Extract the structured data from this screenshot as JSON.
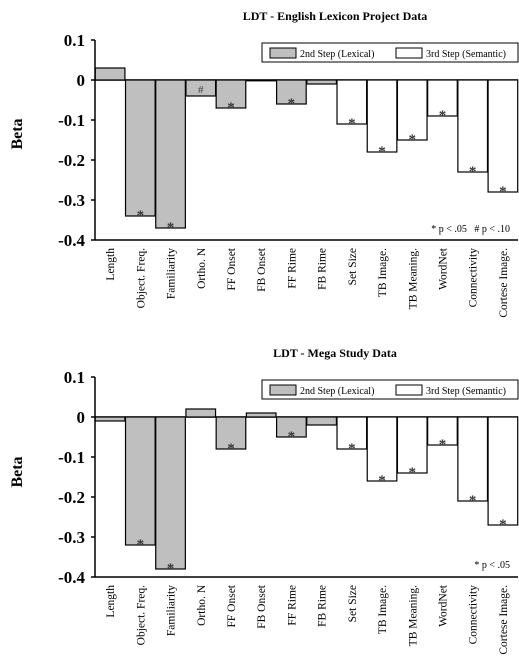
{
  "chart_data": [
    {
      "type": "bar",
      "title": "LDT - English Lexicon Project Data",
      "ylabel": "Beta",
      "ylim": [
        -0.4,
        0.1
      ],
      "yticks": [
        "0.1",
        "0",
        "-0.1",
        "-0.2",
        "-0.3",
        "-0.4"
      ],
      "categories": [
        "Length",
        "Object. Freq.",
        "Familiarity",
        "Ortho. N",
        "FF Onset",
        "FB Onset",
        "FF Rime",
        "FB Rime",
        "Set Size",
        "TB Image.",
        "TB Meaning.",
        "WordNet",
        "Connectivity",
        "Cortese Image."
      ],
      "values": [
        0.03,
        -0.34,
        -0.37,
        -0.04,
        -0.07,
        0.0,
        -0.06,
        -0.01,
        -0.11,
        -0.18,
        -0.15,
        -0.09,
        -0.23,
        -0.28
      ],
      "step": [
        "baseline",
        "lexical",
        "lexical",
        "lexical",
        "lexical",
        "lexical",
        "lexical",
        "lexical",
        "semantic",
        "semantic",
        "semantic",
        "semantic",
        "semantic",
        "semantic"
      ],
      "marks": [
        "",
        "*",
        "*",
        "#",
        "*",
        "",
        "*",
        "",
        "*",
        "*",
        "*",
        "*",
        "*",
        "*"
      ],
      "legend": [
        "2nd Step (Lexical)",
        "3rd Step (Semantic)"
      ],
      "note": "* p < .05   # p < .10",
      "colors": {
        "lexical": "#bfbfbf",
        "semantic": "#ffffff",
        "baseline": "#bfbfbf"
      }
    },
    {
      "type": "bar",
      "title": "LDT - Mega Study Data",
      "ylabel": "Beta",
      "ylim": [
        -0.4,
        0.1
      ],
      "yticks": [
        "0.1",
        "0",
        "-0.1",
        "-0.2",
        "-0.3",
        "-0.4"
      ],
      "categories": [
        "Length",
        "Object. Freq.",
        "Familiarity",
        "Ortho. N",
        "FF Onset",
        "FB Onset",
        "FF Rime",
        "FB Rime",
        "Set Size",
        "TB Image.",
        "TB Meaning.",
        "WordNet",
        "Connectivity",
        "Cortese Image."
      ],
      "values": [
        -0.01,
        -0.32,
        -0.38,
        0.02,
        -0.08,
        0.01,
        -0.05,
        -0.02,
        -0.08,
        -0.16,
        -0.14,
        -0.07,
        -0.21,
        -0.27
      ],
      "step": [
        "baseline",
        "lexical",
        "lexical",
        "lexical",
        "lexical",
        "lexical",
        "lexical",
        "lexical",
        "semantic",
        "semantic",
        "semantic",
        "semantic",
        "semantic",
        "semantic"
      ],
      "marks": [
        "",
        "*",
        "*",
        "",
        "*",
        "",
        "*",
        "",
        "*",
        "*",
        "*",
        "*",
        "*",
        "*"
      ],
      "legend": [
        "2nd Step (Lexical)",
        "3rd Step (Semantic)"
      ],
      "note": "* p < .05",
      "colors": {
        "lexical": "#bfbfbf",
        "semantic": "#ffffff",
        "baseline": "#bfbfbf"
      }
    }
  ]
}
